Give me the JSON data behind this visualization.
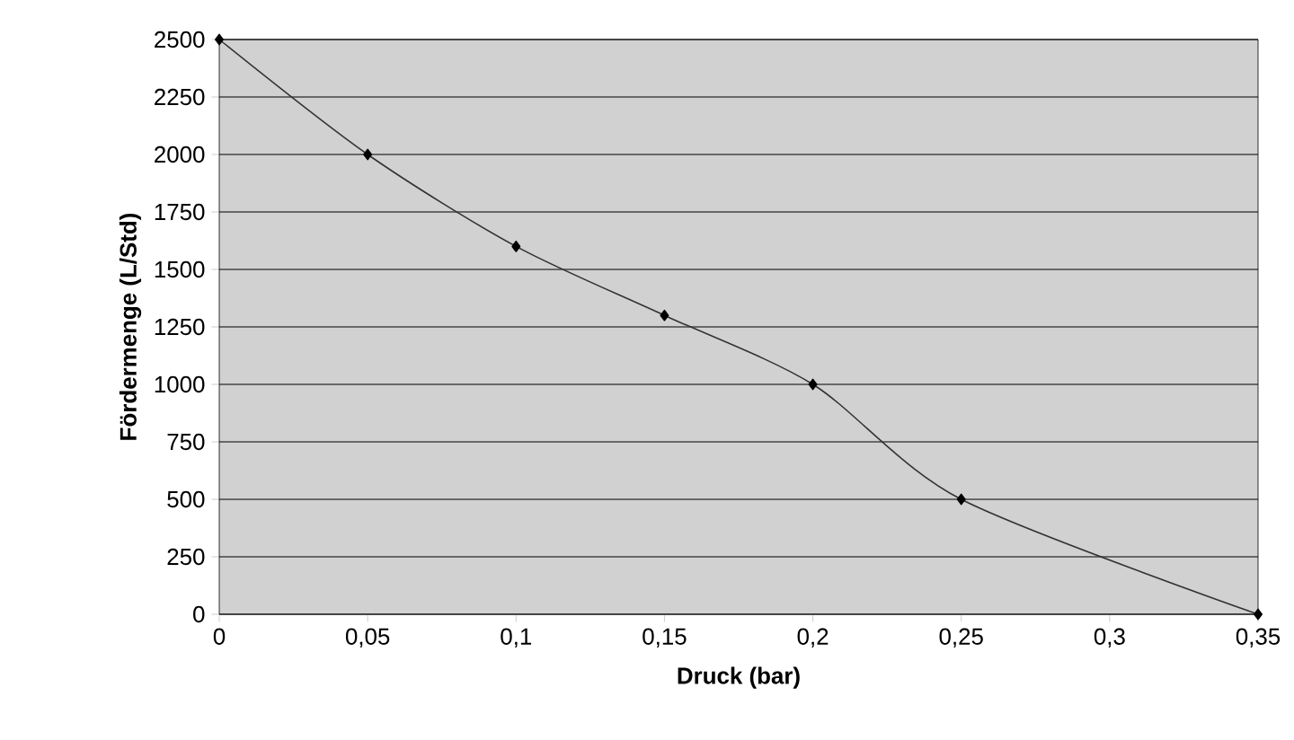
{
  "chart_data": {
    "type": "line",
    "xlabel": "Druck (bar)",
    "ylabel": "Fördermenge (L/Std)",
    "x": [
      0,
      0.05,
      0.1,
      0.15,
      0.2,
      0.25,
      0.35
    ],
    "series": [
      {
        "color": "#333333",
        "values": [
          2500,
          2000,
          1600,
          1300,
          1000,
          500,
          0
        ]
      }
    ],
    "xlim": [
      0,
      0.35
    ],
    "xticks": [
      0,
      {
        "value": 0.05,
        "label": "0,05"
      },
      {
        "value": 0.1,
        "label": "0,1"
      },
      {
        "value": 0.15,
        "label": "0,15"
      },
      {
        "value": 0.2,
        "label": "0,2"
      },
      {
        "value": 0.25,
        "label": "0,25"
      },
      {
        "value": 0.3,
        "label": "0,3"
      },
      {
        "value": 0.35,
        "label": "0,35"
      }
    ],
    "ylim": [
      0,
      2500
    ],
    "yticks": [
      0,
      250,
      500,
      750,
      1000,
      1250,
      1500,
      1750,
      2000,
      2250,
      2500
    ],
    "grid": "y",
    "marker": "diamond",
    "line_style": "solid"
  }
}
